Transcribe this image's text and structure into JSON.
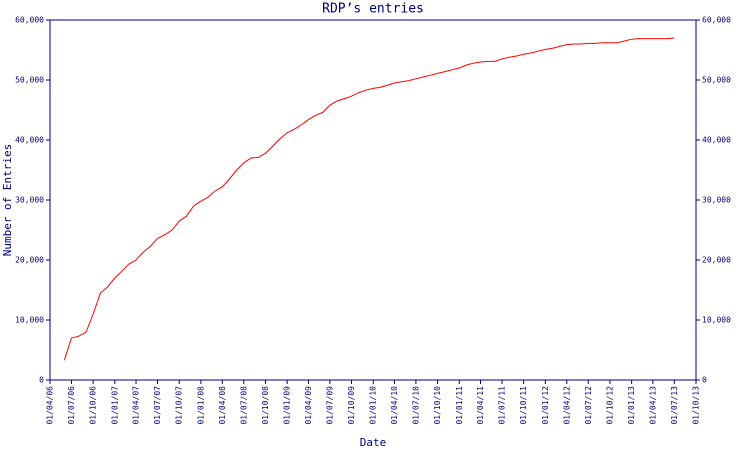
{
  "chart_data": {
    "type": "line",
    "title": "RDP’s entries",
    "x_label": "Date",
    "y_label": "Number of Entries",
    "x": [
      "01/06/06",
      "01/07/06",
      "01/08/06",
      "01/09/06",
      "01/10/06",
      "01/11/06",
      "01/12/06",
      "01/01/07",
      "01/02/07",
      "01/03/07",
      "01/04/07",
      "01/05/07",
      "01/06/07",
      "01/07/07",
      "01/08/07",
      "01/09/07",
      "01/10/07",
      "01/11/07",
      "01/12/07",
      "01/01/08",
      "01/02/08",
      "01/03/08",
      "01/04/08",
      "01/05/08",
      "01/06/08",
      "01/07/08",
      "01/08/08",
      "01/09/08",
      "01/10/08",
      "01/11/08",
      "01/12/08",
      "01/01/09",
      "01/02/09",
      "01/03/09",
      "01/04/09",
      "01/05/09",
      "01/06/09",
      "01/07/09",
      "01/08/09",
      "01/09/09",
      "01/10/09",
      "01/11/09",
      "01/12/09",
      "01/01/10",
      "01/02/10",
      "01/03/10",
      "01/04/10",
      "01/05/10",
      "01/06/10",
      "01/07/10",
      "01/08/10",
      "01/09/10",
      "01/10/10",
      "01/11/10",
      "01/12/10",
      "01/01/11",
      "01/02/11",
      "01/03/11",
      "01/04/11",
      "01/05/11",
      "01/06/11",
      "01/07/11",
      "01/08/11",
      "01/09/11",
      "01/10/11",
      "01/11/11",
      "01/12/11",
      "01/01/12",
      "01/02/12",
      "01/03/12",
      "01/04/12",
      "01/05/12",
      "01/06/12",
      "01/07/12",
      "01/08/12",
      "01/09/12",
      "01/10/12",
      "01/11/12",
      "01/12/12",
      "01/01/13",
      "01/02/13",
      "01/03/13",
      "01/04/13",
      "01/05/13",
      "01/06/13",
      "01/07/13"
    ],
    "series": [
      {
        "color": "#ff0000",
        "values": [
          3300,
          7000,
          7300,
          8000,
          11000,
          14500,
          15500,
          17000,
          18200,
          19300,
          20000,
          21300,
          22300,
          23600,
          24200,
          25000,
          26500,
          27300,
          29000,
          29800,
          30500,
          31500,
          32200,
          33500,
          35000,
          36200,
          37000,
          37100,
          37800,
          39000,
          40200,
          41200,
          41800,
          42500,
          43400,
          44100,
          44600,
          45800,
          46500,
          46900,
          47300,
          47900,
          48300,
          48600,
          48800,
          49100,
          49500,
          49700,
          49900,
          50200,
          50500,
          50800,
          51100,
          51400,
          51700,
          52000,
          52500,
          52800,
          53000,
          53100,
          53100,
          53500,
          53800,
          54000,
          54300,
          54500,
          54800,
          55100,
          55300,
          55600,
          55900,
          56000,
          56000,
          56100,
          56100,
          56200,
          56200,
          56200,
          56500,
          56800,
          56900,
          56900,
          56900,
          56900,
          56900,
          57000
        ]
      }
    ],
    "xlim": [
      "01/04/06",
      "01/10/13"
    ],
    "xticks": [
      "01/04/06",
      "01/07/06",
      "01/10/06",
      "01/01/07",
      "01/04/07",
      "01/07/07",
      "01/10/07",
      "01/01/08",
      "01/04/08",
      "01/07/08",
      "01/10/08",
      "01/01/09",
      "01/04/09",
      "01/07/09",
      "01/10/09",
      "01/01/10",
      "01/04/10",
      "01/07/10",
      "01/10/10",
      "01/01/11",
      "01/04/11",
      "01/07/11",
      "01/10/11",
      "01/01/12",
      "01/04/12",
      "01/07/12",
      "01/10/12",
      "01/01/13",
      "01/04/13",
      "01/07/13",
      "01/10/13"
    ],
    "ylim": [
      0,
      60000
    ],
    "yticks": [
      0,
      {
        "value": 10000,
        "label": "10,000"
      },
      {
        "value": 20000,
        "label": "20,000"
      },
      {
        "value": 30000,
        "label": "30,000"
      },
      {
        "value": 40000,
        "label": "40,000"
      },
      {
        "value": 50000,
        "label": "50,000"
      },
      {
        "value": 60000,
        "label": "60,000"
      }
    ],
    "axis_color": "#000080"
  }
}
